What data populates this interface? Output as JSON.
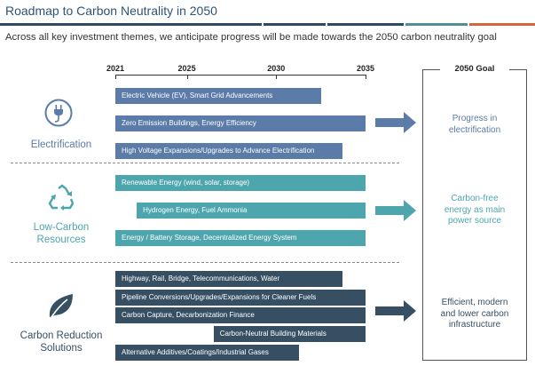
{
  "title": "Roadmap to Carbon Neutrality in 2050",
  "subtitle": "Across all key investment themes, we anticipate progress will be made towards the 2050 carbon neutrality goal",
  "goal_header": "2050 Goal",
  "colors": {
    "electrification": "#5b7ba8",
    "low_carbon": "#4da6ad",
    "carbon_reduction": "#374f63",
    "title_text": "#2e5375",
    "stripe_dark": "#2e4a63",
    "stripe_teal": "#4f8f95",
    "stripe_orange": "#d9643a"
  },
  "themes": [
    {
      "name": "Electrification",
      "icon": "plug-icon",
      "color": "#5b7ba8",
      "goal": "Progress in\nelectrification"
    },
    {
      "name": "Low-Carbon\nResources",
      "icon": "recycle-icon",
      "color": "#4da6ad",
      "goal": "Carbon-free\nenergy as main\npower source"
    },
    {
      "name": "Carbon Reduction\nSolutions",
      "icon": "leaf-icon",
      "color": "#374f63",
      "goal": "Efficient, modern\nand lower carbon\ninfrastructure"
    }
  ],
  "chart_data": {
    "type": "bar",
    "orientation": "horizontal",
    "title": "Roadmap to Carbon Neutrality in 2050",
    "x_ticks": [
      2021,
      2025,
      2030,
      2035
    ],
    "xlim": [
      2021,
      2035
    ],
    "series": [
      {
        "name": "Electrification",
        "categories": [
          {
            "label": "Electric Vehicle (EV), Smart Grid Advancements",
            "start": 2021,
            "end": 2032.5
          },
          {
            "label": "Zero Emission Buildings, Energy Efficiency",
            "start": 2021,
            "end": 2035
          },
          {
            "label": "High Voltage Expansions/Upgrades to Advance Electrification",
            "start": 2021,
            "end": 2033.7
          }
        ]
      },
      {
        "name": "Low-Carbon Resources",
        "categories": [
          {
            "label": "Renewable Energy (wind, solar, storage)",
            "start": 2021,
            "end": 2035
          },
          {
            "label": "Hydrogen Energy, Fuel Ammonia",
            "start": 2022.2,
            "end": 2035
          },
          {
            "label": "Energy / Battery Storage, Decentralized Energy System",
            "start": 2021,
            "end": 2035
          }
        ]
      },
      {
        "name": "Carbon Reduction Solutions",
        "categories": [
          {
            "label": "Highway, Rail, Bridge, Telecommunications, Water",
            "start": 2021,
            "end": 2033.7
          },
          {
            "label": "Pipeline Conversions/Upgrades/Expansions for Cleaner Fuels",
            "start": 2021,
            "end": 2035
          },
          {
            "label": "Carbon Capture, Decarbonization Finance",
            "start": 2021,
            "end": 2035
          },
          {
            "label": "Carbon-Neutral Building Materials",
            "start": 2026.5,
            "end": 2035
          },
          {
            "label": "Alternative Additives/Coatings/Industrial Gases",
            "start": 2021,
            "end": 2031.3
          }
        ]
      }
    ]
  }
}
